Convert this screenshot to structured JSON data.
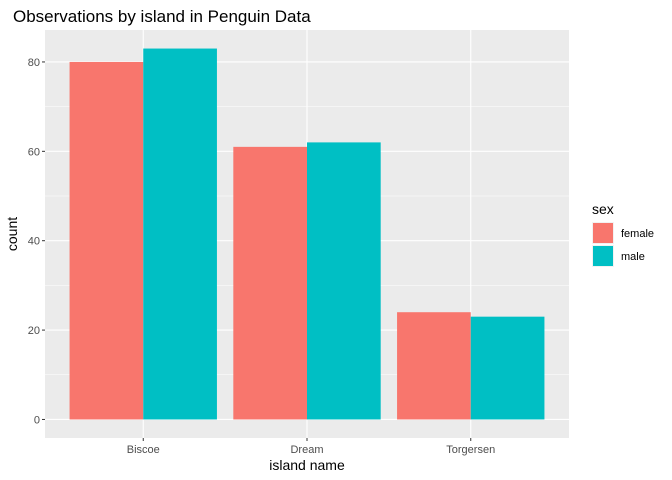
{
  "chart_data": {
    "type": "bar",
    "title": "Observations by island in Penguin Data",
    "xlabel": "island name",
    "ylabel": "count",
    "categories": [
      "Biscoe",
      "Dream",
      "Torgersen"
    ],
    "series": [
      {
        "name": "female",
        "values": [
          80,
          61,
          24
        ],
        "color": "#F8766D"
      },
      {
        "name": "male",
        "values": [
          83,
          62,
          23
        ],
        "color": "#00BFC4"
      }
    ],
    "yticks": [
      0,
      20,
      40,
      60,
      80
    ],
    "ylim": [
      -4.15,
      87.15
    ],
    "grid": true,
    "legend": {
      "title": "sex",
      "position": "right"
    },
    "panel_background": "#EBEBEB",
    "gridline_color": "#FFFFFF"
  }
}
